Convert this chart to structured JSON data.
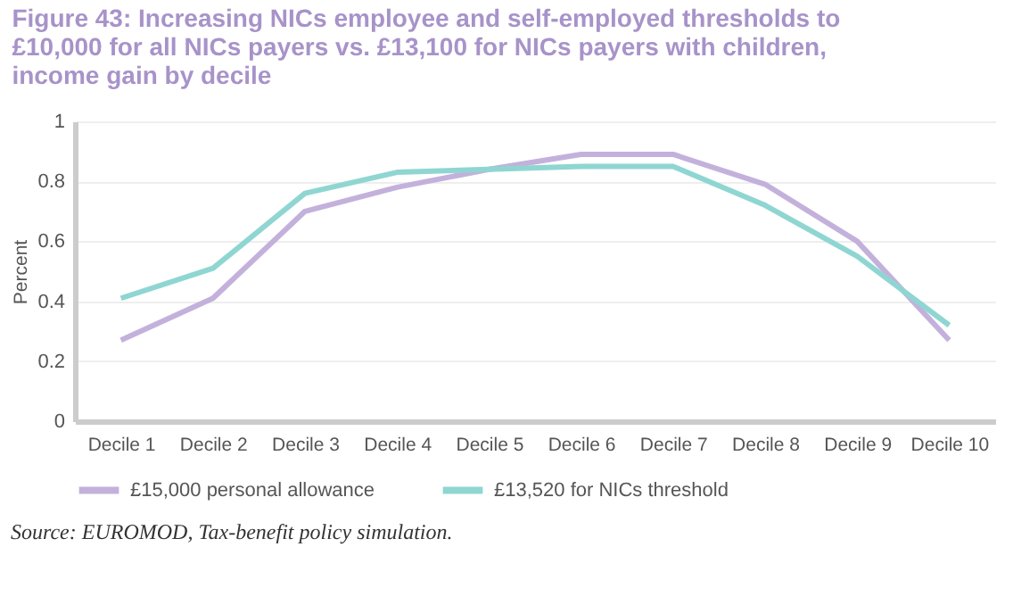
{
  "chart_data": {
    "type": "line",
    "title": "Figure 43: Increasing NICs employee and self-employed thresholds to £10,000 for all NICs payers vs. £13,100 for NICs payers with children, income gain by decile",
    "ylabel": "Percent",
    "categories": [
      "Decile 1",
      "Decile 2",
      "Decile 3",
      "Decile 4",
      "Decile 5",
      "Decile 6",
      "Decile 7",
      "Decile 8",
      "Decile 9",
      "Decile 10"
    ],
    "series": [
      {
        "name": "£15,000 personal allowance",
        "color": "#c3b1dc",
        "values": [
          0.27,
          0.41,
          0.7,
          0.78,
          0.84,
          0.89,
          0.89,
          0.79,
          0.6,
          0.27
        ]
      },
      {
        "name": "£13,520 for NICs threshold",
        "color": "#8fd6d2",
        "values": [
          0.41,
          0.51,
          0.76,
          0.83,
          0.84,
          0.85,
          0.85,
          0.72,
          0.55,
          0.32
        ]
      }
    ],
    "ylim": [
      0,
      1
    ],
    "yticks": [
      0,
      0.2,
      0.4,
      0.6,
      0.8,
      1
    ],
    "grid": "y",
    "legend": "bottom",
    "marker": "none",
    "line_style": "solid",
    "annotations": [
      "Source: EUROMOD, Tax-benefit policy simulation."
    ]
  }
}
